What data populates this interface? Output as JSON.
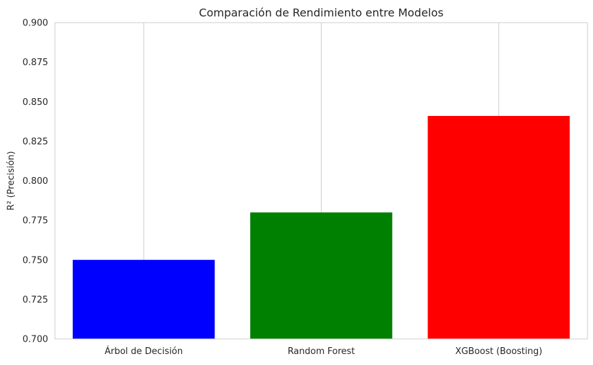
{
  "chart_data": {
    "type": "bar",
    "title": "Comparación de Rendimiento entre Modelos",
    "xlabel": "",
    "ylabel": "R² (Precisión)",
    "categories": [
      "Árbol de Decisión",
      "Random Forest",
      "XGBoost (Boosting)"
    ],
    "values": [
      0.75,
      0.78,
      0.841
    ],
    "colors": [
      "#0000ff",
      "#008000",
      "#ff0000"
    ],
    "ylim": [
      0.7,
      0.9
    ],
    "yticks": [
      "0.700",
      "0.725",
      "0.750",
      "0.775",
      "0.800",
      "0.825",
      "0.850",
      "0.875",
      "0.900"
    ],
    "grid": "x-only",
    "legend": "none"
  }
}
